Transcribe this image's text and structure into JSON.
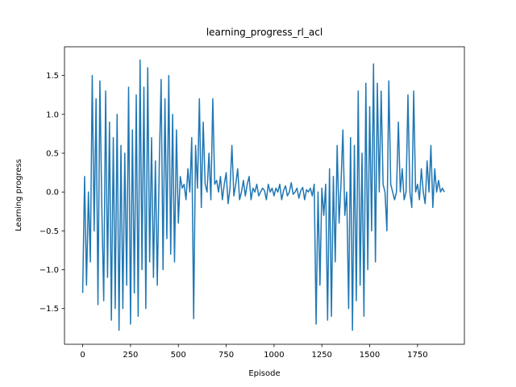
{
  "chart_data": {
    "type": "line",
    "title": "learning_progress_rl_acl",
    "x_label": "Episode",
    "y_label": "Learning progress",
    "x": [
      0,
      10,
      20,
      30,
      40,
      50,
      60,
      70,
      80,
      90,
      100,
      110,
      120,
      130,
      140,
      150,
      160,
      170,
      180,
      190,
      200,
      210,
      220,
      230,
      240,
      250,
      260,
      270,
      280,
      290,
      300,
      310,
      320,
      330,
      340,
      350,
      360,
      370,
      380,
      390,
      400,
      410,
      420,
      430,
      440,
      450,
      460,
      470,
      480,
      490,
      500,
      510,
      520,
      530,
      540,
      550,
      560,
      570,
      580,
      590,
      600,
      610,
      620,
      630,
      640,
      650,
      660,
      670,
      680,
      690,
      700,
      710,
      720,
      730,
      740,
      750,
      760,
      770,
      780,
      790,
      800,
      810,
      820,
      830,
      840,
      850,
      860,
      870,
      880,
      890,
      900,
      910,
      920,
      930,
      940,
      950,
      960,
      970,
      980,
      990,
      1000,
      1010,
      1020,
      1030,
      1040,
      1050,
      1060,
      1070,
      1080,
      1090,
      1100,
      1110,
      1120,
      1130,
      1140,
      1150,
      1160,
      1170,
      1180,
      1190,
      1200,
      1210,
      1220,
      1230,
      1240,
      1250,
      1260,
      1270,
      1280,
      1290,
      1300,
      1310,
      1320,
      1330,
      1340,
      1350,
      1360,
      1370,
      1380,
      1390,
      1400,
      1410,
      1420,
      1430,
      1440,
      1450,
      1460,
      1470,
      1480,
      1490,
      1500,
      1510,
      1520,
      1530,
      1540,
      1550,
      1560,
      1570,
      1580,
      1590,
      1600,
      1610,
      1620,
      1630,
      1640,
      1650,
      1660,
      1670,
      1680,
      1690,
      1700,
      1710,
      1720,
      1730,
      1740,
      1750,
      1760,
      1770,
      1780,
      1790,
      1800,
      1810,
      1820,
      1830,
      1840,
      1850,
      1860,
      1870,
      1880,
      1890
    ],
    "series": [
      {
        "color": "#1f77b4",
        "values": [
          -1.3,
          0.2,
          -1.2,
          0.0,
          -0.9,
          1.5,
          -0.5,
          1.2,
          -1.45,
          1.43,
          -0.2,
          -1.4,
          1.3,
          -1.1,
          0.9,
          -1.65,
          0.7,
          -1.5,
          1.0,
          -1.78,
          0.6,
          -1.5,
          0.5,
          -1.2,
          1.35,
          -1.7,
          0.8,
          -1.3,
          1.25,
          -1.6,
          1.7,
          -1.0,
          1.35,
          -1.5,
          1.6,
          -0.9,
          0.7,
          -1.1,
          0.4,
          -1.2,
          0.3,
          1.45,
          -1.0,
          1.2,
          -0.6,
          1.5,
          -0.8,
          1.0,
          -0.9,
          0.8,
          -0.4,
          0.2,
          0.05,
          0.1,
          -0.1,
          0.3,
          0.0,
          0.7,
          -1.63,
          0.6,
          0.05,
          1.2,
          -0.2,
          0.9,
          0.1,
          0.0,
          0.5,
          -0.1,
          1.2,
          0.1,
          0.15,
          0.0,
          0.2,
          -0.1,
          0.1,
          0.25,
          -0.15,
          0.05,
          0.6,
          -0.05,
          0.1,
          0.3,
          -0.1,
          0.0,
          0.15,
          -0.05,
          0.1,
          0.2,
          -0.1,
          0.05,
          0.0,
          0.1,
          -0.05,
          0.0,
          0.05,
          0.02,
          -0.1,
          0.1,
          0.0,
          0.05,
          -0.05,
          0.05,
          0.0,
          0.1,
          -0.1,
          0.02,
          0.08,
          -0.05,
          0.0,
          0.12,
          -0.03,
          0.0,
          0.05,
          -0.08,
          0.02,
          0.06,
          -0.1,
          0.03,
          0.0,
          0.05,
          -0.05,
          0.1,
          -1.7,
          0.0,
          -1.2,
          0.05,
          -0.3,
          0.1,
          -1.65,
          0.3,
          -1.6,
          0.2,
          -0.9,
          0.6,
          -0.4,
          0.1,
          0.8,
          -0.3,
          0.0,
          -1.5,
          0.7,
          -1.78,
          0.6,
          -1.4,
          1.3,
          -1.2,
          0.5,
          -1.6,
          1.4,
          -1.0,
          1.1,
          -0.5,
          1.65,
          -0.9,
          1.4,
          0.0,
          1.3,
          0.1,
          0.0,
          -0.5,
          1.43,
          0.1,
          0.0,
          -0.1,
          0.0,
          0.9,
          0.0,
          0.3,
          -0.1,
          0.0,
          1.25,
          0.0,
          -0.2,
          1.3,
          0.0,
          0.1,
          -0.1,
          0.3,
          0.0,
          -0.15,
          0.4,
          0.0,
          0.6,
          -0.2,
          0.3,
          0.0,
          0.15,
          0.0,
          0.05,
          0.0
        ]
      }
    ],
    "xlim": [
      -95,
      1995
    ],
    "xticks": [
      0,
      250,
      500,
      750,
      1000,
      1250,
      1500,
      1750
    ],
    "ylim": [
      -1.96,
      1.87
    ],
    "yticks": [
      {
        "value": -1.5,
        "label": "−1.5"
      },
      {
        "value": -1,
        "label": "−1.0"
      },
      {
        "value": -0.5,
        "label": "−0.5"
      },
      {
        "value": 0,
        "label": "0.0"
      },
      0.5,
      {
        "value": 1,
        "label": "1.0"
      },
      1.5
    ]
  }
}
